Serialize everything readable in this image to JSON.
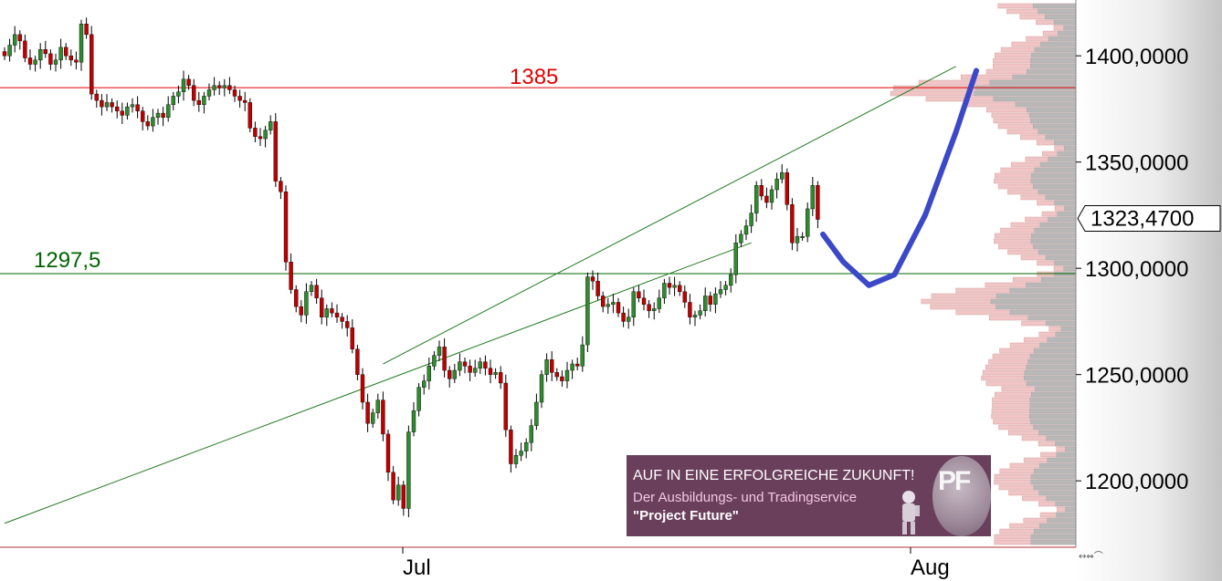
{
  "chart_data": {
    "type": "candlestick",
    "title": "",
    "xlabel": "",
    "ylabel": "",
    "ylim": [
      1175,
      1445
    ],
    "x_ticks": [
      "Jul",
      "Aug"
    ],
    "y_ticks": [
      "1200,0000",
      "1250,0000",
      "1300,0000",
      "1350,0000",
      "1400,0000"
    ],
    "y_tick_values": [
      1200,
      1250,
      1300,
      1350,
      1400
    ],
    "last_price": 1323.47,
    "last_price_label": "1323,4700",
    "levels": [
      {
        "name": "resistance",
        "value": 1385,
        "label": "1385",
        "color": "#e00000"
      },
      {
        "name": "support",
        "value": 1297.5,
        "label": "1297,5",
        "color": "#006400"
      }
    ],
    "trend_channel": {
      "lower": [
        [
          0,
          1180
        ],
        [
          146,
          1312
        ]
      ],
      "upper": [
        [
          74,
          1255
        ],
        [
          186,
          1395
        ]
      ]
    },
    "forecast_path": [
      [
        160,
        1316
      ],
      [
        164,
        1303
      ],
      [
        169,
        1292
      ],
      [
        174,
        1297
      ],
      [
        180,
        1325
      ],
      [
        186,
        1364
      ],
      [
        190,
        1393
      ]
    ],
    "closes": [
      1400,
      1405,
      1410,
      1407,
      1399,
      1396,
      1398,
      1403,
      1401,
      1396,
      1398,
      1404,
      1400,
      1398,
      1397,
      1415,
      1410,
      1382,
      1379,
      1376,
      1378,
      1376,
      1374,
      1372,
      1376,
      1377,
      1374,
      1369,
      1367,
      1371,
      1373,
      1371,
      1377,
      1381,
      1383,
      1389,
      1386,
      1379,
      1377,
      1381,
      1384,
      1386,
      1385,
      1386,
      1384,
      1381,
      1379,
      1378,
      1366,
      1362,
      1361,
      1365,
      1369,
      1341,
      1336,
      1303,
      1290,
      1282,
      1278,
      1289,
      1292,
      1286,
      1277,
      1281,
      1279,
      1277,
      1275,
      1272,
      1262,
      1250,
      1237,
      1227,
      1232,
      1238,
      1222,
      1204,
      1191,
      1198,
      1187,
      1223,
      1233,
      1244,
      1247,
      1254,
      1259,
      1263,
      1252,
      1248,
      1252,
      1256,
      1254,
      1251,
      1253,
      1256,
      1253,
      1250,
      1251,
      1246,
      1224,
      1208,
      1212,
      1214,
      1218,
      1226,
      1237,
      1250,
      1257,
      1251,
      1249,
      1247,
      1252,
      1255,
      1254,
      1264,
      1296,
      1294,
      1287,
      1282,
      1283,
      1284,
      1279,
      1275,
      1277,
      1289,
      1286,
      1283,
      1280,
      1281,
      1286,
      1293,
      1291,
      1292,
      1289,
      1284,
      1277,
      1278,
      1280,
      1287,
      1283,
      1288,
      1290,
      1292,
      1297,
      1312,
      1316,
      1320,
      1326,
      1339,
      1334,
      1331,
      1337,
      1342,
      1345,
      1330,
      1312,
      1315,
      1315,
      1328,
      1339,
      1323
    ]
  },
  "banner": {
    "headline": "AUF IN EINE ERFOLGREICHE ZUKUNFT!",
    "subline": "Der Ausbildungs- und Tradingservice",
    "quote": "\"Project Future\"",
    "logo": "PF"
  },
  "controls": {
    "scroll_icons": "↔⇔⌒"
  },
  "colors": {
    "up_candle": "#2e8b2e",
    "down_candle": "#c00000",
    "wick": "#000000",
    "forecast": "#3b48c8",
    "volume_profile_a": "#f0c5c5",
    "volume_profile_b": "#b8b8b8"
  }
}
